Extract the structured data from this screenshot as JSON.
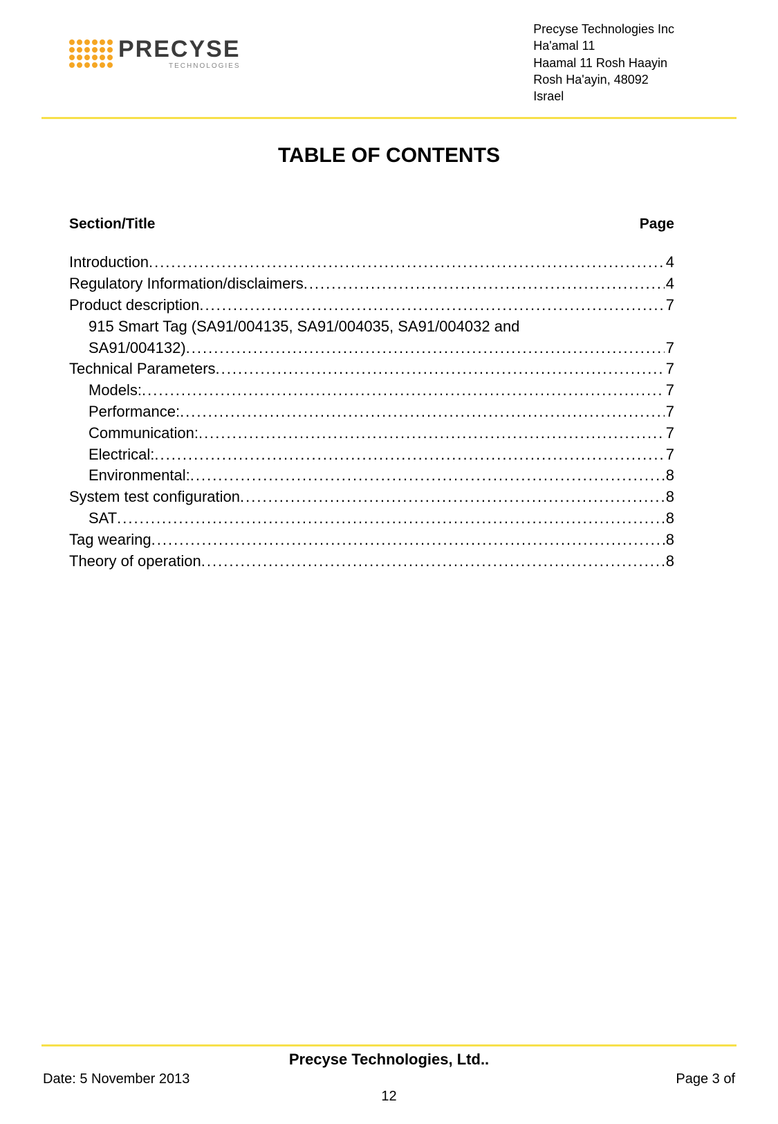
{
  "header": {
    "logo_main": "PRECYSE",
    "logo_sub": "TECHNOLOGIES",
    "address_lines": [
      "Precyse Technologies Inc",
      "Ha'amal 11",
      "Haamal 11 Rosh Haayin",
      "Rosh Ha'ayin, 48092",
      "Israel"
    ]
  },
  "title": "TABLE OF CONTENTS",
  "column_headers": {
    "section": "Section/Title",
    "page": "Page"
  },
  "toc": [
    {
      "label": "Introduction",
      "page": "4",
      "indent": false
    },
    {
      "label": "Regulatory Information/disclaimers",
      "page": "4",
      "indent": false
    },
    {
      "label": "Product description",
      "page": "7",
      "indent": false
    },
    {
      "label_line1": "915 Smart Tag (SA91/004135, SA91/004035, SA91/004032 and",
      "label_line2": "SA91/004132)",
      "page": "7",
      "indent": true,
      "multiline": true
    },
    {
      "label": "Technical Parameters",
      "page": "7",
      "indent": false
    },
    {
      "label": "Models:",
      "page": "7",
      "indent": true
    },
    {
      "label": "Performance:",
      "page": "7",
      "indent": true
    },
    {
      "label": "Communication:",
      "page": "7",
      "indent": true
    },
    {
      "label": "Electrical:",
      "page": "7",
      "indent": true
    },
    {
      "label": "Environmental:",
      "page": "8",
      "indent": true
    },
    {
      "label": "System test configuration",
      "page": "8",
      "indent": false
    },
    {
      "label": "SAT",
      "page": "8",
      "indent": true
    },
    {
      "label": "Tag wearing",
      "page": "8",
      "indent": false
    },
    {
      "label": "Theory of operation",
      "page": "8",
      "indent": false
    }
  ],
  "footer": {
    "company": "Precyse Technologies, Ltd..",
    "date": "Date: 5 November 2013",
    "page_label": "Page 3 of",
    "page_total": "12"
  },
  "colors": {
    "rule": "#f7e04a",
    "logo_dot": "#f5a623",
    "text": "#000000",
    "logo_text": "#3b3b3b"
  }
}
